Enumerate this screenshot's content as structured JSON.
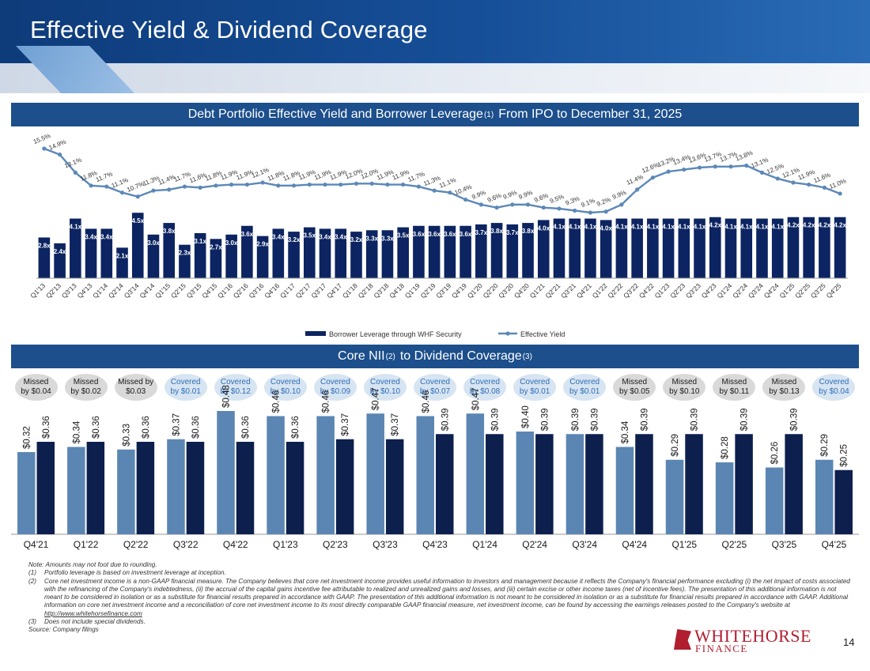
{
  "title": "Effective Yield & Dividend Coverage",
  "sections": {
    "top_title": "Debt Portfolio Effective Yield and Borrower Leverage",
    "top_sup": "(1)",
    "top_title_tail": "From IPO to December 31, 2025",
    "bottom_title": "Core NII",
    "bottom_sup1": "(2)",
    "bottom_title_mid": "to Dividend Coverage",
    "bottom_sup2": "(3)"
  },
  "chart_data": [
    {
      "type": "bar",
      "categories": [
        "Q1'13",
        "Q2'13",
        "Q3'13",
        "Q4'13",
        "Q1'14",
        "Q2'14",
        "Q3'14",
        "Q4'14",
        "Q1'15",
        "Q2'15",
        "Q3'15",
        "Q4'15",
        "Q1'16",
        "Q2'16",
        "Q3'16",
        "Q4'16",
        "Q1'17",
        "Q2'17",
        "Q3'17",
        "Q4'17",
        "Q1'18",
        "Q2'18",
        "Q3'18",
        "Q4'18",
        "Q1'19",
        "Q2'19",
        "Q3'19",
        "Q4'19",
        "Q1'20",
        "Q2'20",
        "Q3'20",
        "Q4'20",
        "Q1'21",
        "Q2'21",
        "Q3'21",
        "Q4'21",
        "Q1'22",
        "Q2'22",
        "Q3'22",
        "Q4'22",
        "Q1'23",
        "Q2'23",
        "Q3'23",
        "Q4'23",
        "Q1'24",
        "Q2'24",
        "Q3'24",
        "Q4'24",
        "Q1'25",
        "Q2'25",
        "Q3'25",
        "Q4'25"
      ],
      "series": [
        {
          "name": "Borrower Leverage through WHF Security",
          "kind": "bar",
          "color": "#0c2461",
          "values": [
            2.8,
            2.4,
            4.1,
            3.4,
            3.4,
            2.1,
            4.5,
            3.0,
            3.8,
            2.3,
            3.1,
            2.7,
            3.0,
            3.6,
            2.9,
            3.4,
            3.2,
            3.5,
            3.4,
            3.4,
            3.2,
            3.3,
            3.3,
            3.5,
            3.6,
            3.6,
            3.6,
            3.6,
            3.7,
            3.8,
            3.7,
            3.8,
            4.0,
            4.1,
            4.1,
            4.1,
            4.0,
            4.1,
            4.1,
            4.1,
            4.1,
            4.1,
            4.1,
            4.2,
            4.1,
            4.1,
            4.1,
            4.1,
            4.2,
            4.2,
            4.2,
            4.2
          ],
          "labels": [
            "2.8x",
            "2.4x",
            "4.1x",
            "3.4x",
            "3.4x",
            "2.1x",
            "4.5x",
            "3.0x",
            "3.8x",
            "2.3x",
            "3.1x",
            "2.7x",
            "3.0x",
            "3.6x",
            "2.9x",
            "3.4x",
            "3.2x",
            "3.5x",
            "3.4x",
            "3.4x",
            "3.2x",
            "3.3x",
            "3.3x",
            "3.5x",
            "3.6x",
            "3.6x",
            "3.6x",
            "3.6x",
            "3.7x",
            "3.8x",
            "3.7x",
            "3.8x",
            "4.0x",
            "4.1x",
            "4.1x",
            "4.1x",
            "4.0x",
            "4.1x",
            "4.1x",
            "4.1x",
            "4.1x",
            "4.1x",
            "4.1x",
            "4.2x",
            "4.1x",
            "4.1x",
            "4.1x",
            "4.1x",
            "4.2x",
            "4.2x",
            "4.2x",
            "4.2x"
          ]
        },
        {
          "name": "Effective Yield",
          "kind": "line",
          "color": "#5b88b8",
          "values": [
            15.5,
            14.9,
            13.1,
            11.8,
            11.7,
            11.1,
            10.7,
            11.3,
            11.4,
            11.7,
            11.6,
            11.8,
            11.9,
            11.9,
            12.1,
            11.8,
            11.8,
            11.9,
            11.9,
            11.9,
            12.0,
            12.0,
            11.9,
            11.9,
            11.7,
            11.3,
            11.1,
            10.4,
            9.9,
            9.6,
            9.9,
            9.9,
            9.6,
            9.5,
            9.3,
            9.1,
            9.2,
            9.9,
            11.4,
            12.6,
            13.2,
            13.4,
            13.6,
            13.7,
            13.7,
            13.8,
            13.1,
            12.5,
            12.1,
            11.9,
            11.6,
            11.0
          ],
          "labels": [
            "15.5%",
            "14.9%",
            "13.1%",
            "11.8%",
            "11.7%",
            "11.1%",
            "10.7%",
            "11.3%",
            "11.4%",
            "11.7%",
            "11.6%",
            "11.8%",
            "11.9%",
            "11.9%",
            "12.1%",
            "11.8%",
            "11.8%",
            "11.9%",
            "11.9%",
            "11.9%",
            "12.0%",
            "12.0%",
            "11.9%",
            "11.9%",
            "11.7%",
            "11.3%",
            "11.1%",
            "10.4%",
            "9.9%",
            "9.6%",
            "9.9%",
            "9.9%",
            "9.6%",
            "9.5%",
            "9.3%",
            "9.1%",
            "9.2%",
            "9.9%",
            "11.4%",
            "12.6%",
            "13.2%",
            "13.4%",
            "13.6%",
            "13.7%",
            "13.7%",
            "13.8%",
            "13.1%",
            "12.5%",
            "12.1%",
            "11.9%",
            "11.6%",
            "11.0%"
          ]
        }
      ],
      "legend_position": "bottom",
      "grid": false
    },
    {
      "type": "bar",
      "categories": [
        "Q4'21",
        "Q1'22",
        "Q2'22",
        "Q3'22",
        "Q4'22",
        "Q1'23",
        "Q2'23",
        "Q3'23",
        "Q4'23",
        "Q1'24",
        "Q2'24",
        "Q3'24",
        "Q4'24",
        "Q1'25",
        "Q2'25",
        "Q3'25",
        "Q4'25"
      ],
      "series": [
        {
          "name": "Core NII per share",
          "color": "#5b86b3",
          "values": [
            0.32,
            0.34,
            0.33,
            0.37,
            0.48,
            0.46,
            0.46,
            0.47,
            0.46,
            0.47,
            0.4,
            0.39,
            0.34,
            0.29,
            0.28,
            0.26,
            0.29
          ],
          "labels": [
            "$0.32",
            "$0.34",
            "$0.33",
            "$0.37",
            "$0.48",
            "$0.46",
            "$0.46",
            "$0.47",
            "$0.46",
            "$0.47",
            "$0.40",
            "$0.39",
            "$0.34",
            "$0.29",
            "$0.28",
            "$0.26",
            "$0.29"
          ]
        },
        {
          "name": "Dividends per share",
          "color": "#0c1f4d",
          "values": [
            0.36,
            0.36,
            0.36,
            0.36,
            0.36,
            0.36,
            0.37,
            0.37,
            0.39,
            0.39,
            0.39,
            0.39,
            0.39,
            0.39,
            0.39,
            0.39,
            0.25
          ],
          "labels": [
            "$0.36",
            "$0.36",
            "$0.36",
            "$0.36",
            "$0.36",
            "$0.36",
            "$0.37",
            "$0.37",
            "$0.39",
            "$0.39",
            "$0.39",
            "$0.39",
            "$0.39",
            "$0.39",
            "$0.39",
            "$0.39",
            "$0.25"
          ]
        }
      ],
      "annotations": [
        {
          "status": "missed",
          "line1": "Missed",
          "line2": "by $0.04"
        },
        {
          "status": "missed",
          "line1": "Missed",
          "line2": "by $0.02"
        },
        {
          "status": "missed",
          "line1": "Missed by",
          "line2": "$0.03"
        },
        {
          "status": "covered",
          "line1": "Covered",
          "line2": "by $0.01"
        },
        {
          "status": "covered",
          "line1": "Covered",
          "line2": "by $0.12"
        },
        {
          "status": "covered",
          "line1": "Covered",
          "line2": "by $0.10"
        },
        {
          "status": "covered",
          "line1": "Covered",
          "line2": "by $0.09"
        },
        {
          "status": "covered",
          "line1": "Covered",
          "line2": "by $0.10"
        },
        {
          "status": "covered",
          "line1": "Covered",
          "line2": "by $0.07"
        },
        {
          "status": "covered",
          "line1": "Covered",
          "line2": "by $0.08"
        },
        {
          "status": "covered",
          "line1": "Covered",
          "line2": "by $0.01"
        },
        {
          "status": "covered",
          "line1": "Covered",
          "line2": "by $0.01"
        },
        {
          "status": "missed",
          "line1": "Missed",
          "line2": "by $0.05"
        },
        {
          "status": "missed",
          "line1": "Missed",
          "line2": "by $0.10"
        },
        {
          "status": "missed",
          "line1": "Missed",
          "line2": "by $0.11"
        },
        {
          "status": "missed",
          "line1": "Missed",
          "line2": "by $0.13"
        },
        {
          "status": "covered",
          "line1": "Covered",
          "line2": "by $0.04"
        }
      ],
      "colors": {
        "missed_bg": "#d9d9d9",
        "covered_bg": "#d7e4f2",
        "covered_text": "#2f6fb8"
      },
      "legend_position": "bottom",
      "grid": false
    }
  ],
  "footnotes": {
    "note": "Note: Amounts may not foot due to rounding.",
    "items": [
      {
        "num": "(1)",
        "text": "Portfolio leverage is based on investment leverage at inception."
      },
      {
        "num": "(2)",
        "text": "Core net investment income is a non-GAAP financial measure. The Company believes that core net investment income provides useful information to investors and management because it reflects the Company's financial performance excluding (i) the net impact of costs associated with the refinancing of the Company's indebtedness, (ii) the accrual of the capital gains incentive fee attributable to realized and unrealized gains and losses, and (iii) certain excise or other income taxes (net of incentive fees). The presentation of this additional information is not meant to be considered in isolation or as a substitute for financial results prepared in accordance with GAAP. The presentation of this additional information is not meant to be considered in isolation or as a substitute for financial results prepared in accordance with GAAP. Additional information on core net investment income and a reconciliation of core net investment income to its most directly comparable GAAP financial measure, net investment income, can be found by accessing the earnings releases posted to the Company's website at",
        "link": "http://www.whitehorsefinance.com"
      },
      {
        "num": "(3)",
        "text": "Does not include special dividends."
      }
    ],
    "source": "Source: Company filings"
  },
  "logo": {
    "word1": "WHITEHORSE",
    "word2": "FINANCE",
    "color": "#b01e2f"
  },
  "page_number": "14"
}
